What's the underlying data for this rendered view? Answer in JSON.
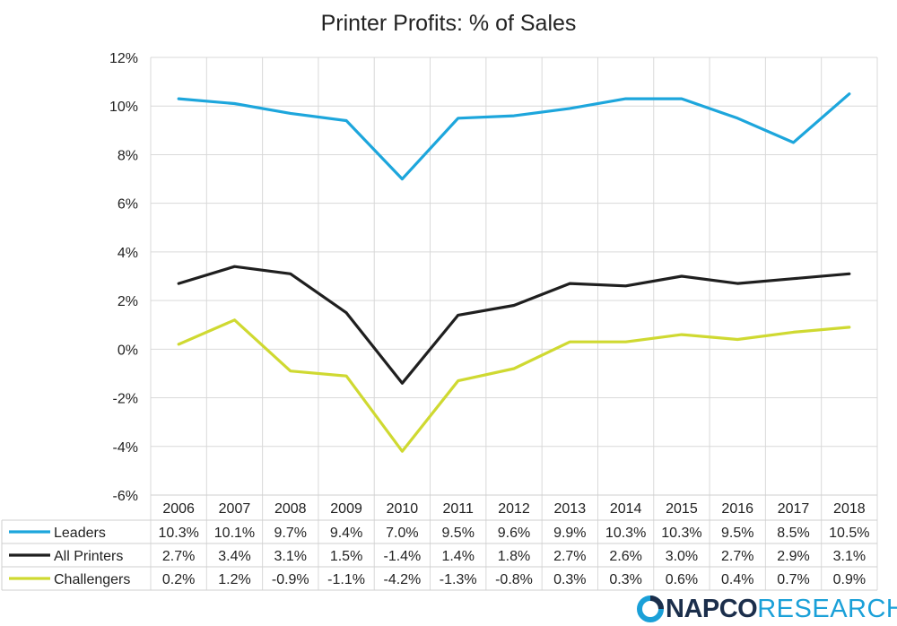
{
  "chart_data": {
    "type": "line",
    "title": "Printer Profits: % of Sales",
    "categories": [
      "2006",
      "2007",
      "2008",
      "2009",
      "2010",
      "2011",
      "2012",
      "2013",
      "2014",
      "2015",
      "2016",
      "2017",
      "2018"
    ],
    "y_ticks": [
      "12%",
      "10%",
      "8%",
      "6%",
      "4%",
      "2%",
      "0%",
      "-2%",
      "-4%",
      "-6%"
    ],
    "ylim": [
      -6,
      12
    ],
    "grid": true,
    "legend": "data table below plot",
    "series": [
      {
        "name": "Leaders",
        "color": "#1da6dc",
        "values": [
          10.3,
          10.1,
          9.7,
          9.4,
          7.0,
          9.5,
          9.6,
          9.9,
          10.3,
          10.3,
          9.5,
          8.5,
          10.5
        ],
        "labels": [
          "10.3%",
          "10.1%",
          "9.7%",
          "9.4%",
          "7.0%",
          "9.5%",
          "9.6%",
          "9.9%",
          "10.3%",
          "10.3%",
          "9.5%",
          "8.5%",
          "10.5%"
        ]
      },
      {
        "name": "All Printers",
        "color": "#1f1f1f",
        "values": [
          2.7,
          3.4,
          3.1,
          1.5,
          -1.4,
          1.4,
          1.8,
          2.7,
          2.6,
          3.0,
          2.7,
          2.9,
          3.1
        ],
        "labels": [
          "2.7%",
          "3.4%",
          "3.1%",
          "1.5%",
          "-1.4%",
          "1.4%",
          "1.8%",
          "2.7%",
          "2.6%",
          "3.0%",
          "2.7%",
          "2.9%",
          "3.1%"
        ]
      },
      {
        "name": "Challengers",
        "color": "#cfd931",
        "values": [
          0.2,
          1.2,
          -0.9,
          -1.1,
          -4.2,
          -1.3,
          -0.8,
          0.3,
          0.3,
          0.6,
          0.4,
          0.7,
          0.9
        ],
        "labels": [
          "0.2%",
          "1.2%",
          "-0.9%",
          "-1.1%",
          "-4.2%",
          "-1.3%",
          "-0.8%",
          "0.3%",
          "0.3%",
          "0.6%",
          "0.4%",
          "0.7%",
          "0.9%"
        ]
      }
    ]
  },
  "logo": {
    "part1": "NAPCO",
    "part2": "RESEARCH",
    "colors": {
      "dark": "#1b2e4b",
      "accent": "#1aa0d8"
    }
  }
}
